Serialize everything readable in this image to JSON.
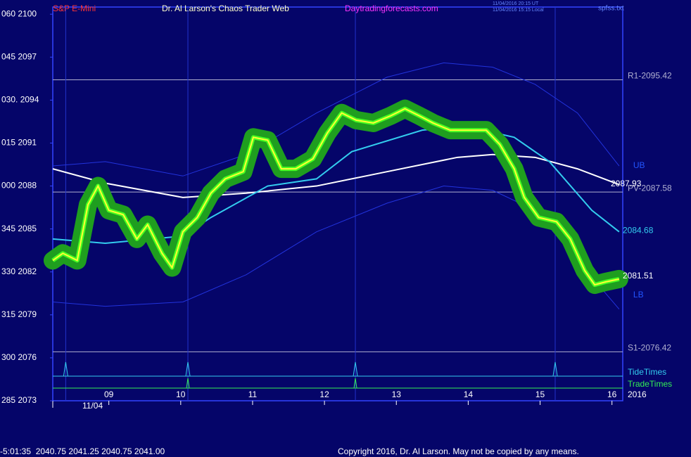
{
  "chart_data": {
    "type": "line",
    "title": "Dr. Al Larson's Chaos Trader Web",
    "symbol": "S&P E-Mini",
    "website": "Daytradingforecasts.com",
    "timestamps": [
      "11/04/2016 20:15 UT",
      "11/04/2016 15:15 Local"
    ],
    "file": "spfss.txt",
    "date": "11/04",
    "year": "2016",
    "xlim": [
      8.22,
      16.15
    ],
    "xticks": [
      {
        "value": 9,
        "label": "09"
      },
      10,
      11,
      12,
      13,
      14,
      15,
      16
    ],
    "ylim": [
      2073,
      2100.5
    ],
    "yticks": [
      {
        "value": 2100,
        "label": "060 2100"
      },
      {
        "value": 2097,
        "label": "045 2097"
      },
      {
        "value": 2094,
        "label": "030. 2094"
      },
      {
        "value": 2091,
        "label": "015 2091"
      },
      {
        "value": 2088,
        "label": "000 2088"
      },
      {
        "value": 2085,
        "label": "345 2085"
      },
      {
        "value": 2082,
        "label": "330 2082"
      },
      {
        "value": 2079,
        "label": "315 2079"
      },
      {
        "value": 2076,
        "label": "300 2076"
      },
      {
        "value": 2073,
        "label": "285 2073"
      }
    ],
    "levels": [
      {
        "label": "R1-2095.42",
        "value": 2095.42
      },
      {
        "label": "PV-2087.58",
        "value": 2087.58
      },
      {
        "label": "S1-2076.42",
        "value": 2076.42
      }
    ],
    "series": [
      {
        "name": "UB",
        "color": "#2233dd",
        "style": "band",
        "x": [
          8.22,
          8.95,
          10.03,
          10.91,
          11.89,
          12.87,
          13.66,
          14.34,
          14.93,
          15.52,
          16.1
        ],
        "values": [
          2089.4,
          2089.7,
          2088.7,
          2090.2,
          2093.1,
          2095.6,
          2096.6,
          2096.3,
          2095.1,
          2093.1,
          2089.4
        ]
      },
      {
        "name": "LB",
        "color": "#2233dd",
        "style": "band",
        "x": [
          8.22,
          8.95,
          10.03,
          10.91,
          11.89,
          12.87,
          13.66,
          14.34,
          14.93,
          15.52,
          16.1
        ],
        "values": [
          2079.9,
          2079.6,
          2079.9,
          2081.8,
          2084.8,
          2086.8,
          2088.0,
          2087.7,
          2086.3,
          2082.8,
          2079.4
        ]
      },
      {
        "color": "#ffffff",
        "style": "ma",
        "x": [
          8.22,
          8.95,
          10.03,
          10.91,
          11.89,
          12.87,
          13.85,
          14.34,
          14.93,
          15.52,
          16.1
        ],
        "values": [
          2089.2,
          2088.2,
          2087.2,
          2087.5,
          2088.0,
          2089.0,
          2090.0,
          2090.2,
          2090.0,
          2089.2,
          2088.1
        ]
      },
      {
        "color": "#33ccee",
        "style": "ma",
        "x": [
          8.22,
          8.95,
          10.03,
          10.42,
          11.21,
          11.89,
          12.38,
          13.36,
          13.95,
          14.64,
          15.13,
          15.72,
          16.1
        ],
        "values": [
          2084.3,
          2084.0,
          2084.5,
          2085.8,
          2088.0,
          2088.5,
          2090.4,
          2091.9,
          2092.2,
          2091.4,
          2089.7,
          2086.3,
          2084.8
        ]
      },
      {
        "color": "#ffff33",
        "style": "price",
        "x": [
          8.22,
          8.36,
          8.56,
          8.71,
          8.85,
          9.0,
          9.2,
          9.39,
          9.54,
          9.74,
          9.88,
          10.03,
          10.23,
          10.42,
          10.62,
          10.87,
          11.01,
          11.21,
          11.4,
          11.6,
          11.84,
          12.04,
          12.24,
          12.44,
          12.68,
          12.92,
          13.12,
          13.32,
          13.51,
          13.75,
          14.0,
          14.25,
          14.44,
          14.64,
          14.78,
          14.98,
          15.23,
          15.42,
          15.62,
          15.76,
          15.91,
          16.1
        ],
        "values": [
          2082.8,
          2083.3,
          2082.8,
          2086.7,
          2088.0,
          2086.3,
          2086.0,
          2084.3,
          2085.3,
          2083.3,
          2082.3,
          2084.8,
          2085.8,
          2087.5,
          2088.5,
          2089.0,
          2091.4,
          2091.2,
          2089.2,
          2089.2,
          2089.9,
          2091.7,
          2093.1,
          2092.6,
          2092.4,
          2092.9,
          2093.4,
          2092.9,
          2092.4,
          2091.9,
          2091.9,
          2091.9,
          2090.9,
          2089.2,
          2087.2,
          2085.8,
          2085.5,
          2084.3,
          2082.1,
          2081.1,
          2081.3,
          2081.5
        ]
      }
    ],
    "end_labels": [
      2087.93,
      2084.68,
      2081.51
    ],
    "tide_label": "TideTimes",
    "trade_label": "TradeTimes",
    "tide_times": [
      8.4,
      10.1,
      12.43,
      15.21
    ],
    "trade_times": [
      10.1,
      12.43
    ],
    "status": "-5:01:35  2040.75 2041.25 2040.75 2041.00",
    "copyright": "Copyright 2016, Dr. Al Larson. May not be copied by any means."
  }
}
